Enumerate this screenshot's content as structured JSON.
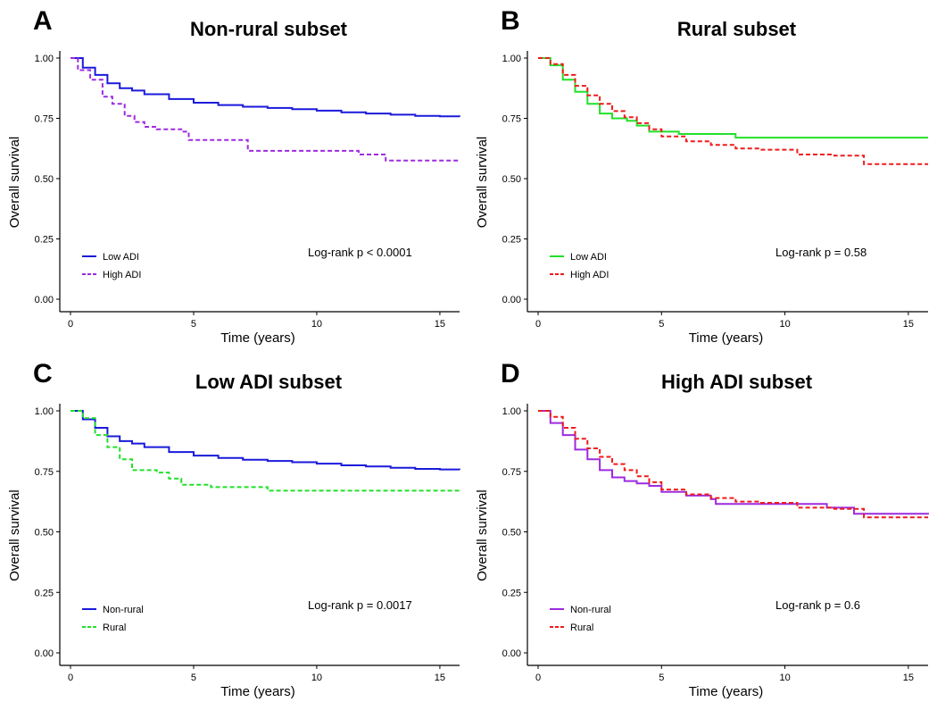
{
  "chart_data": [
    {
      "type": "line",
      "panel_label": "A",
      "title": "Non-rural subset",
      "xlabel": "Time (years)",
      "ylabel": "Overall survival",
      "xlim": [
        0,
        15.8
      ],
      "ylim": [
        0,
        1
      ],
      "xticks": [
        0,
        5,
        10,
        15
      ],
      "yticks": [
        0.0,
        0.25,
        0.5,
        0.75,
        1.0
      ],
      "ytick_labels": [
        "0.00",
        "0.25",
        "0.50",
        "0.75",
        "1.00"
      ],
      "grid": false,
      "legend_position": "bottom-left",
      "annotation": "Log-rank  p < 0.0001",
      "series": [
        {
          "name": "Low ADI",
          "color": "#1a1adb",
          "dash": "solid",
          "x": [
            0,
            0.5,
            1.0,
            1.5,
            2.0,
            2.5,
            3.0,
            4.0,
            5.0,
            6.0,
            7.0,
            8.0,
            9.0,
            10.0,
            11.0,
            12.0,
            13.0,
            14.0,
            15.0,
            15.8
          ],
          "y": [
            1.0,
            0.96,
            0.93,
            0.895,
            0.875,
            0.865,
            0.85,
            0.83,
            0.815,
            0.805,
            0.798,
            0.793,
            0.788,
            0.782,
            0.775,
            0.77,
            0.765,
            0.76,
            0.758,
            0.757
          ]
        },
        {
          "name": "High ADI",
          "color": "#9d2be0",
          "dash": "dashed",
          "x": [
            0,
            0.3,
            0.8,
            1.3,
            1.7,
            2.2,
            2.6,
            3.0,
            3.5,
            4.5,
            4.8,
            7.2,
            11.7,
            12.8,
            15.8
          ],
          "y": [
            1.0,
            0.95,
            0.91,
            0.84,
            0.81,
            0.76,
            0.735,
            0.715,
            0.705,
            0.695,
            0.66,
            0.615,
            0.6,
            0.575,
            0.572
          ]
        }
      ]
    },
    {
      "type": "line",
      "panel_label": "B",
      "title": "Rural subset",
      "xlabel": "Time (years)",
      "ylabel": "Overall survival",
      "xlim": [
        0,
        15.8
      ],
      "ylim": [
        0,
        1
      ],
      "xticks": [
        0,
        5,
        10,
        15
      ],
      "yticks": [
        0.0,
        0.25,
        0.5,
        0.75,
        1.0
      ],
      "ytick_labels": [
        "0.00",
        "0.25",
        "0.50",
        "0.75",
        "1.00"
      ],
      "grid": false,
      "legend_position": "bottom-left",
      "annotation": "Log-rank  p = 0.58",
      "series": [
        {
          "name": "Low ADI",
          "color": "#22e02a",
          "dash": "solid",
          "x": [
            0,
            0.5,
            1.0,
            1.5,
            2.0,
            2.5,
            3.0,
            3.6,
            4.0,
            4.5,
            5.7,
            8.0,
            15.8
          ],
          "y": [
            1.0,
            0.97,
            0.91,
            0.86,
            0.81,
            0.77,
            0.75,
            0.74,
            0.72,
            0.695,
            0.685,
            0.67,
            0.67
          ]
        },
        {
          "name": "High ADI",
          "color": "#ef1b1b",
          "dash": "dashed",
          "x": [
            0,
            0.5,
            1.0,
            1.5,
            2.0,
            2.5,
            3.0,
            3.5,
            4.0,
            4.5,
            5.0,
            6.0,
            7.0,
            8.0,
            9.0,
            10.5,
            12.0,
            13.2,
            15.8
          ],
          "y": [
            1.0,
            0.975,
            0.93,
            0.885,
            0.845,
            0.81,
            0.78,
            0.755,
            0.73,
            0.705,
            0.675,
            0.655,
            0.64,
            0.625,
            0.62,
            0.6,
            0.595,
            0.56,
            0.56
          ]
        }
      ]
    },
    {
      "type": "line",
      "panel_label": "C",
      "title": "Low ADI subset",
      "xlabel": "Time (years)",
      "ylabel": "Overall survival",
      "xlim": [
        0,
        15.8
      ],
      "ylim": [
        0,
        1
      ],
      "xticks": [
        0,
        5,
        10,
        15
      ],
      "yticks": [
        0.0,
        0.25,
        0.5,
        0.75,
        1.0
      ],
      "ytick_labels": [
        "0.00",
        "0.25",
        "0.50",
        "0.75",
        "1.00"
      ],
      "grid": false,
      "legend_position": "bottom-left",
      "annotation": "Log-rank  p = 0.0017",
      "series": [
        {
          "name": "Non-rural",
          "color": "#1a1adb",
          "dash": "solid",
          "x": [
            0,
            0.5,
            1.0,
            1.5,
            2.0,
            2.5,
            3.0,
            4.0,
            5.0,
            6.0,
            7.0,
            8.0,
            9.0,
            10.0,
            11.0,
            12.0,
            13.0,
            14.0,
            15.0,
            15.8
          ],
          "y": [
            1.0,
            0.965,
            0.93,
            0.895,
            0.875,
            0.865,
            0.85,
            0.83,
            0.815,
            0.805,
            0.798,
            0.793,
            0.788,
            0.782,
            0.775,
            0.77,
            0.765,
            0.76,
            0.758,
            0.757
          ]
        },
        {
          "name": "Rural",
          "color": "#22e02a",
          "dash": "dashed",
          "x": [
            0,
            0.5,
            1.0,
            1.5,
            2.0,
            2.5,
            3.5,
            4.0,
            4.5,
            5.7,
            8.0,
            15.8
          ],
          "y": [
            1.0,
            0.97,
            0.9,
            0.85,
            0.8,
            0.755,
            0.745,
            0.72,
            0.695,
            0.685,
            0.67,
            0.67
          ]
        }
      ]
    },
    {
      "type": "line",
      "panel_label": "D",
      "title": "High ADI subset",
      "xlabel": "Time (years)",
      "ylabel": "Overall survival",
      "xlim": [
        0,
        15.8
      ],
      "ylim": [
        0,
        1
      ],
      "xticks": [
        0,
        5,
        10,
        15
      ],
      "yticks": [
        0.0,
        0.25,
        0.5,
        0.75,
        1.0
      ],
      "ytick_labels": [
        "0.00",
        "0.25",
        "0.50",
        "0.75",
        "1.00"
      ],
      "grid": false,
      "legend_position": "bottom-left",
      "annotation": "Log-rank  p = 0.6",
      "series": [
        {
          "name": "Non-rural",
          "color": "#9d2be0",
          "dash": "solid",
          "x": [
            0,
            0.5,
            1.0,
            1.5,
            2.0,
            2.5,
            3.0,
            3.5,
            4.0,
            4.5,
            5.0,
            6.0,
            7.0,
            7.2,
            11.7,
            12.8,
            15.8
          ],
          "y": [
            1.0,
            0.95,
            0.9,
            0.84,
            0.8,
            0.755,
            0.725,
            0.71,
            0.7,
            0.69,
            0.665,
            0.65,
            0.635,
            0.615,
            0.6,
            0.575,
            0.572
          ]
        },
        {
          "name": "Rural",
          "color": "#ef1b1b",
          "dash": "dashed",
          "x": [
            0,
            0.5,
            1.0,
            1.5,
            2.0,
            2.5,
            3.0,
            3.5,
            4.0,
            4.5,
            5.0,
            6.0,
            7.0,
            8.0,
            9.0,
            10.5,
            12.0,
            13.2,
            15.8
          ],
          "y": [
            1.0,
            0.975,
            0.93,
            0.885,
            0.845,
            0.81,
            0.78,
            0.755,
            0.73,
            0.705,
            0.675,
            0.655,
            0.64,
            0.625,
            0.62,
            0.6,
            0.595,
            0.56,
            0.56
          ]
        }
      ]
    }
  ]
}
